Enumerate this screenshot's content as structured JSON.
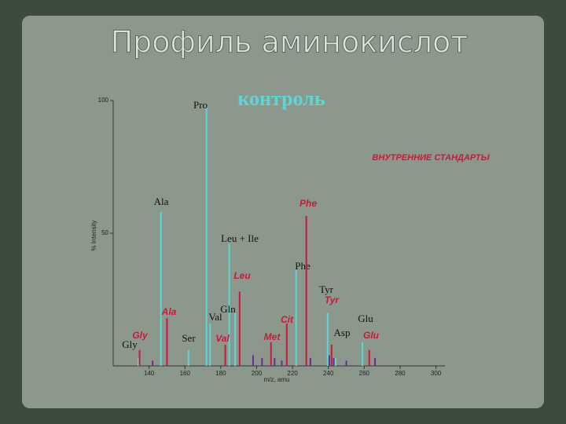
{
  "chart_data": {
    "type": "stem",
    "title": "Профиль аминокислот",
    "y_label": "% Intensity",
    "x_label": "m/z, amu",
    "xlim": [
      120,
      305
    ],
    "ylim": [
      0,
      100
    ],
    "xticks": [
      140,
      160,
      180,
      200,
      220,
      240,
      260,
      280,
      300
    ],
    "yticks": [
      50,
      100
    ],
    "series": [
      {
        "name": "контроль",
        "color": "#5fd6d6",
        "x": [
          134,
          146.6,
          162,
          172,
          174,
          184.7,
          188,
          222,
          239.6,
          244,
          259
        ],
        "values": [
          3,
          58,
          6,
          98,
          16,
          46,
          20,
          36,
          20,
          3,
          9
        ],
        "labels": [
          "Gly",
          "Ala",
          "Ser",
          "Pro",
          "Val",
          "Leu + Ile",
          "Gln",
          "Phe",
          "Tyr",
          "Asp",
          "Glu"
        ]
      },
      {
        "name": "ВНУТРЕННИЕ СТАНДАРТЫ",
        "color": "#c8193c",
        "x": [
          134.7,
          150,
          182.5,
          190.5,
          208,
          216.8,
          227.7,
          241.8,
          262.8
        ],
        "values": [
          6,
          18,
          8,
          28,
          9,
          16,
          56.5,
          8,
          6
        ],
        "labels": [
          "Gly",
          "Ala",
          "Val",
          "Leu",
          "Met",
          "Cit",
          "Phe",
          "Tyr",
          "Glu"
        ]
      },
      {
        "color": "#6a2a9a",
        "x": [
          142,
          198,
          203,
          210,
          214,
          230,
          240.5,
          243,
          250,
          266
        ],
        "values": [
          2,
          4,
          3,
          3,
          2,
          3,
          4,
          3,
          2,
          3
        ]
      }
    ]
  }
}
